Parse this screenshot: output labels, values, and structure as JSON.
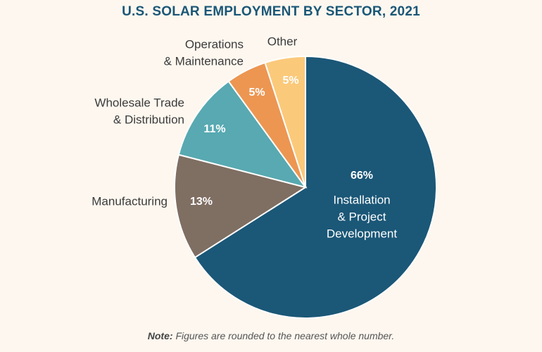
{
  "chart_data": {
    "type": "pie",
    "title": "U.S. SOLAR EMPLOYMENT BY SECTOR, 2021",
    "slices": [
      {
        "label": "Installation & Project Development",
        "label_lines": [
          "Installation",
          "& Project",
          "Development"
        ],
        "value": 66,
        "pct_label": "66%",
        "color": "#1b5777",
        "label_placement": "inside"
      },
      {
        "label": "Manufacturing",
        "label_lines": [
          "Manufacturing"
        ],
        "value": 13,
        "pct_label": "13%",
        "color": "#7f6e62",
        "label_placement": "outside-left"
      },
      {
        "label": "Wholesale Trade & Distribution",
        "label_lines": [
          "Wholesale Trade",
          "& Distribution"
        ],
        "value": 11,
        "pct_label": "11%",
        "color": "#58a9b1",
        "label_placement": "outside-left"
      },
      {
        "label": "Operations & Maintenance",
        "label_lines": [
          "Operations",
          "& Maintenance"
        ],
        "value": 5,
        "pct_label": "5%",
        "color": "#ec9652",
        "label_placement": "outside-top"
      },
      {
        "label": "Other",
        "label_lines": [
          "Other"
        ],
        "value": 5,
        "pct_label": "5%",
        "color": "#fbc97a",
        "label_placement": "outside-top"
      }
    ]
  },
  "note": {
    "label": "Note:",
    "text": "Figures are rounded to the nearest whole number."
  }
}
